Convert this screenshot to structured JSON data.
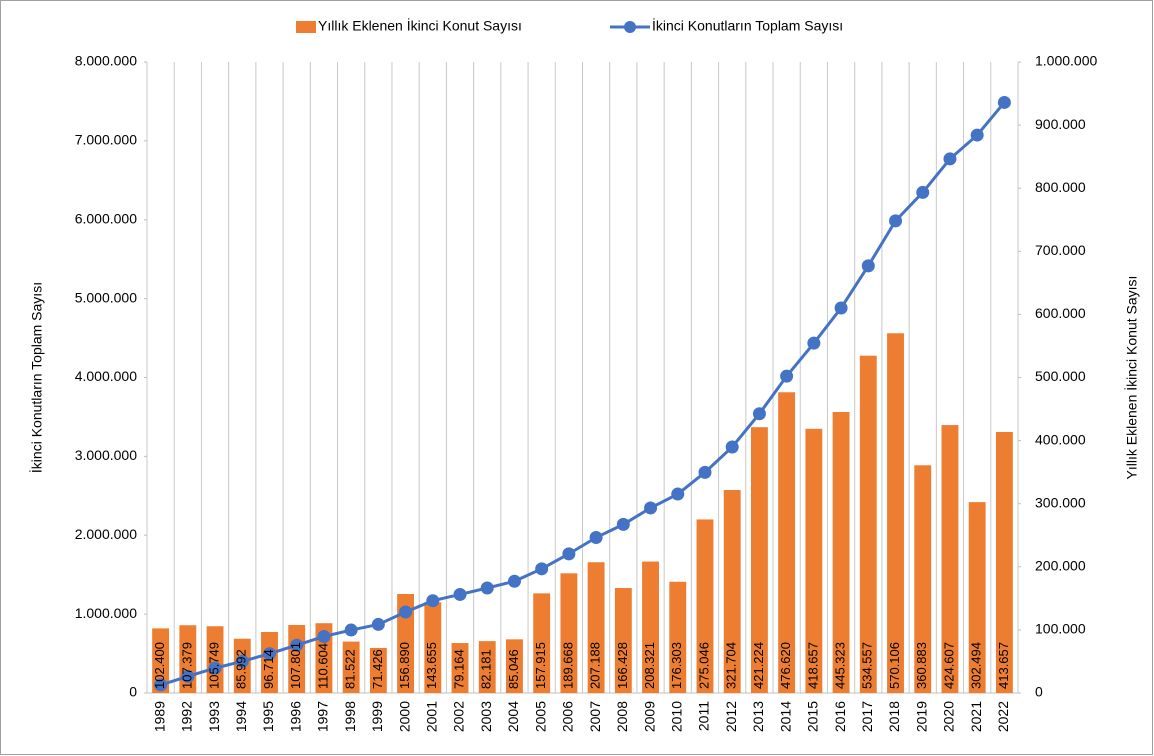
{
  "chart_data": {
    "type": "bar+line",
    "categories": [
      "1989",
      "1992",
      "1993",
      "1994",
      "1995",
      "1996",
      "1997",
      "1998",
      "1999",
      "2000",
      "2001",
      "2002",
      "2003",
      "2004",
      "2005",
      "2006",
      "2007",
      "2008",
      "2009",
      "2010",
      "2011",
      "2012",
      "2013",
      "2014",
      "2015",
      "2016",
      "2017",
      "2018",
      "2019",
      "2020",
      "2021",
      "2022"
    ],
    "series": [
      {
        "name": "Yıllık Eklenen İkinci Konut Sayısı",
        "type": "bar",
        "axis": "y2",
        "color": "#ed7d31",
        "values": [
          102400,
          107379,
          105749,
          85992,
          96714,
          107801,
          110604,
          81522,
          71426,
          156890,
          143655,
          79164,
          82181,
          85046,
          157915,
          189668,
          207188,
          166428,
          208321,
          176303,
          275046,
          321704,
          421224,
          476620,
          418657,
          445323,
          534557,
          570106,
          360883,
          424607,
          302494,
          413657
        ],
        "value_labels": [
          "102.400",
          "107.379",
          "105.749",
          "85.992",
          "96.714",
          "107.801",
          "110.604",
          "81.522",
          "71.426",
          "156.890",
          "143.655",
          "79.164",
          "82.181",
          "85.046",
          "157.915",
          "189.668",
          "207.188",
          "166.428",
          "208.321",
          "176.303",
          "275.046",
          "321.704",
          "421.224",
          "476.620",
          "418.657",
          "445.323",
          "534.557",
          "570.106",
          "360.883",
          "424.607",
          "302.494",
          "413.657"
        ]
      },
      {
        "name": "İkinci Konutların Toplam Sayısı",
        "type": "line",
        "axis": "y",
        "color": "#4472c4",
        "values": [
          102400,
          209779,
          315528,
          401520,
          498234,
          606035,
          716639,
          798161,
          869587,
          1026477,
          1170132,
          1249296,
          1331477,
          1416523,
          1574438,
          1764106,
          1971294,
          2137722,
          2346043,
          2522346,
          2797392,
          3119096,
          3540320,
          4016940,
          4435597,
          4880920,
          5415477,
          5985583,
          6346466,
          6771073,
          7073567,
          7487224
        ]
      }
    ],
    "ylabel": "İkinci Konutların Toplam Sayısı",
    "y2label": "Yıllık Eklenen İkinci Konut Sayısı",
    "ylim": [
      0,
      8000000
    ],
    "yticks": [
      0,
      {
        "value": 1000000,
        "label": "1.000.000"
      },
      {
        "value": 2000000,
        "label": "2.000.000"
      },
      {
        "value": 3000000,
        "label": "3.000.000"
      },
      {
        "value": 4000000,
        "label": "4.000.000"
      },
      {
        "value": 5000000,
        "label": "5.000.000"
      },
      {
        "value": 6000000,
        "label": "6.000.000"
      },
      {
        "value": 7000000,
        "label": "7.000.000"
      },
      {
        "value": 8000000,
        "label": "8.000.000"
      }
    ],
    "y2lim": [
      0,
      1000000
    ],
    "y2ticks": [
      0,
      {
        "value": 100000,
        "label": "100.000"
      },
      {
        "value": 200000,
        "label": "200.000"
      },
      {
        "value": 300000,
        "label": "300.000"
      },
      {
        "value": 400000,
        "label": "400.000"
      },
      {
        "value": 500000,
        "label": "500.000"
      },
      {
        "value": 600000,
        "label": "600.000"
      },
      {
        "value": 700000,
        "label": "700.000"
      },
      {
        "value": 800000,
        "label": "800.000"
      },
      {
        "value": 900000,
        "label": "900.000"
      },
      {
        "value": 1000000,
        "label": "1.000.000"
      }
    ],
    "xgrid": true,
    "legend": "top"
  }
}
